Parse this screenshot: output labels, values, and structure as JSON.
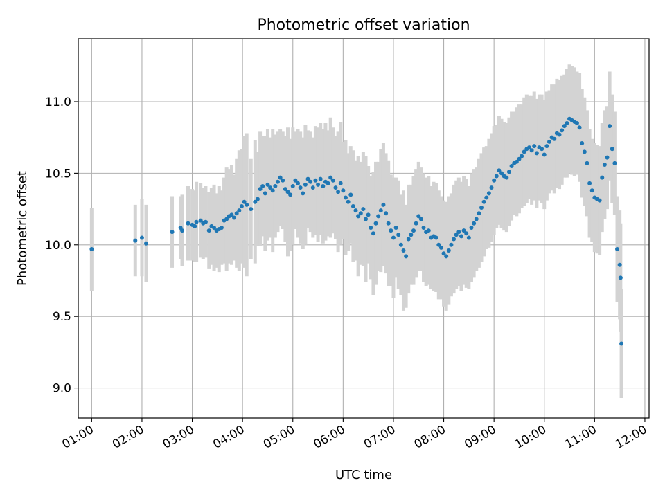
{
  "chart_data": {
    "type": "scatter",
    "title": "Photometric offset variation",
    "xlabel": "UTC time",
    "ylabel": "Photometric offset",
    "xlim": [
      "00:44",
      "12:05"
    ],
    "ylim": [
      8.79,
      11.44
    ],
    "x_ticks": [
      "01:00",
      "02:00",
      "03:00",
      "04:00",
      "05:00",
      "06:00",
      "07:00",
      "08:00",
      "09:00",
      "10:00",
      "11:00",
      "12:00"
    ],
    "y_ticks": [
      "9.0",
      "9.5",
      "10.0",
      "10.5",
      "11.0"
    ],
    "grid": true,
    "colors": {
      "points": "#1f77b4",
      "errorbars": "#d3d3d3",
      "grid": "#b0b0b0"
    },
    "series": [
      {
        "x": [
          "01:00",
          "01:52",
          "02:00",
          "02:05",
          "02:36",
          "02:46",
          "02:48",
          "02:55",
          "03:00",
          "03:03",
          "03:05",
          "03:10",
          "03:13",
          "03:16",
          "03:20",
          "03:23",
          "03:26",
          "03:29",
          "03:32",
          "03:35",
          "03:38",
          "03:41",
          "03:44",
          "03:47",
          "03:50",
          "03:53",
          "03:56",
          "03:59",
          "04:02",
          "04:05",
          "04:10",
          "04:15",
          "04:18",
          "04:21",
          "04:24",
          "04:27",
          "04:30",
          "04:33",
          "04:36",
          "04:39",
          "04:42",
          "04:45",
          "04:48",
          "04:51",
          "04:54",
          "04:57",
          "05:00",
          "05:03",
          "05:06",
          "05:09",
          "05:12",
          "05:15",
          "05:18",
          "05:21",
          "05:24",
          "05:27",
          "05:30",
          "05:33",
          "05:36",
          "05:39",
          "05:42",
          "05:45",
          "05:48",
          "05:51",
          "05:54",
          "05:57",
          "06:00",
          "06:03",
          "06:06",
          "06:09",
          "06:12",
          "06:15",
          "06:18",
          "06:21",
          "06:24",
          "06:27",
          "06:30",
          "06:33",
          "06:36",
          "06:39",
          "06:42",
          "06:45",
          "06:48",
          "06:51",
          "06:54",
          "06:57",
          "07:00",
          "07:03",
          "07:06",
          "07:09",
          "07:12",
          "07:15",
          "07:18",
          "07:21",
          "07:24",
          "07:27",
          "07:30",
          "07:33",
          "07:36",
          "07:39",
          "07:42",
          "07:45",
          "07:48",
          "07:51",
          "07:54",
          "07:57",
          "08:00",
          "08:03",
          "08:06",
          "08:09",
          "08:12",
          "08:15",
          "08:18",
          "08:21",
          "08:24",
          "08:27",
          "08:30",
          "08:33",
          "08:36",
          "08:39",
          "08:42",
          "08:45",
          "08:48",
          "08:51",
          "08:54",
          "08:57",
          "09:00",
          "09:03",
          "09:06",
          "09:09",
          "09:12",
          "09:15",
          "09:18",
          "09:21",
          "09:24",
          "09:27",
          "09:30",
          "09:33",
          "09:36",
          "09:39",
          "09:42",
          "09:45",
          "09:48",
          "09:51",
          "09:54",
          "09:57",
          "10:00",
          "10:03",
          "10:06",
          "10:09",
          "10:12",
          "10:15",
          "10:18",
          "10:21",
          "10:24",
          "10:27",
          "10:30",
          "10:33",
          "10:36",
          "10:39",
          "10:42",
          "10:45",
          "10:48",
          "10:51",
          "10:54",
          "10:57",
          "11:00",
          "11:03",
          "11:06",
          "11:09",
          "11:12",
          "11:15",
          "11:18",
          "11:21",
          "11:24",
          "11:27",
          "11:30",
          "11:31",
          "11:32"
        ],
        "y": [
          9.97,
          10.03,
          10.05,
          10.01,
          10.09,
          10.12,
          10.1,
          10.15,
          10.14,
          10.13,
          10.16,
          10.17,
          10.15,
          10.16,
          10.1,
          10.13,
          10.12,
          10.1,
          10.11,
          10.12,
          10.17,
          10.18,
          10.2,
          10.21,
          10.19,
          10.22,
          10.24,
          10.27,
          10.3,
          10.28,
          10.25,
          10.3,
          10.32,
          10.39,
          10.41,
          10.36,
          10.42,
          10.4,
          10.38,
          10.41,
          10.44,
          10.47,
          10.45,
          10.39,
          10.37,
          10.35,
          10.41,
          10.45,
          10.43,
          10.4,
          10.36,
          10.42,
          10.46,
          10.44,
          10.4,
          10.45,
          10.42,
          10.46,
          10.41,
          10.44,
          10.43,
          10.47,
          10.45,
          10.4,
          10.37,
          10.43,
          10.38,
          10.33,
          10.3,
          10.35,
          10.27,
          10.24,
          10.2,
          10.22,
          10.25,
          10.18,
          10.21,
          10.12,
          10.08,
          10.15,
          10.2,
          10.24,
          10.28,
          10.22,
          10.15,
          10.1,
          10.05,
          10.12,
          10.07,
          10.0,
          9.96,
          9.92,
          10.04,
          10.07,
          10.1,
          10.15,
          10.2,
          10.18,
          10.12,
          10.09,
          10.1,
          10.05,
          10.06,
          10.05,
          10.0,
          9.98,
          9.94,
          9.92,
          9.96,
          10.0,
          10.04,
          10.07,
          10.09,
          10.06,
          10.1,
          10.08,
          10.05,
          10.12,
          10.15,
          10.18,
          10.22,
          10.26,
          10.3,
          10.33,
          10.36,
          10.4,
          10.45,
          10.48,
          10.52,
          10.5,
          10.48,
          10.47,
          10.51,
          10.55,
          10.57,
          10.58,
          10.6,
          10.62,
          10.65,
          10.67,
          10.68,
          10.66,
          10.69,
          10.64,
          10.68,
          10.67,
          10.63,
          10.69,
          10.72,
          10.75,
          10.74,
          10.78,
          10.77,
          10.8,
          10.83,
          10.85,
          10.88,
          10.87,
          10.86,
          10.85,
          10.82,
          10.71,
          10.65,
          10.57,
          10.43,
          10.38,
          10.33,
          10.32,
          10.31,
          10.47,
          10.56,
          10.61,
          10.83,
          10.67,
          10.57,
          9.97,
          9.86,
          9.77,
          9.31
        ],
        "yerr": [
          0.29,
          0.25,
          0.27,
          0.27,
          0.25,
          0.22,
          0.25,
          0.26,
          0.25,
          0.25,
          0.28,
          0.26,
          0.25,
          0.25,
          0.27,
          0.27,
          0.3,
          0.26,
          0.3,
          0.26,
          0.3,
          0.36,
          0.33,
          0.35,
          0.3,
          0.38,
          0.42,
          0.4,
          0.46,
          0.5,
          0.35,
          0.43,
          0.33,
          0.4,
          0.35,
          0.4,
          0.39,
          0.35,
          0.43,
          0.36,
          0.35,
          0.34,
          0.34,
          0.37,
          0.45,
          0.39,
          0.41,
          0.34,
          0.38,
          0.39,
          0.39,
          0.42,
          0.34,
          0.35,
          0.35,
          0.38,
          0.4,
          0.39,
          0.4,
          0.41,
          0.37,
          0.42,
          0.37,
          0.36,
          0.42,
          0.43,
          0.34,
          0.4,
          0.34,
          0.34,
          0.39,
          0.35,
          0.42,
          0.36,
          0.4,
          0.44,
          0.34,
          0.36,
          0.43,
          0.43,
          0.38,
          0.43,
          0.43,
          0.42,
          0.44,
          0.39,
          0.42,
          0.35,
          0.38,
          0.35,
          0.42,
          0.36,
          0.38,
          0.35,
          0.38,
          0.38,
          0.38,
          0.36,
          0.38,
          0.38,
          0.38,
          0.36,
          0.38,
          0.38,
          0.38,
          0.36,
          0.37,
          0.38,
          0.38,
          0.36,
          0.38,
          0.38,
          0.38,
          0.38,
          0.38,
          0.38,
          0.36,
          0.38,
          0.38,
          0.36,
          0.38,
          0.38,
          0.38,
          0.36,
          0.38,
          0.38,
          0.38,
          0.36,
          0.38,
          0.38,
          0.38,
          0.38,
          0.38,
          0.38,
          0.36,
          0.38,
          0.38,
          0.36,
          0.38,
          0.38,
          0.36,
          0.38,
          0.38,
          0.38,
          0.37,
          0.38,
          0.38,
          0.38,
          0.36,
          0.37,
          0.38,
          0.38,
          0.38,
          0.38,
          0.36,
          0.38,
          0.38,
          0.38,
          0.38,
          0.36,
          0.38,
          0.38,
          0.38,
          0.37,
          0.38,
          0.36,
          0.38,
          0.38,
          0.38,
          0.38,
          0.38,
          0.36,
          0.38,
          0.38,
          0.36,
          0.37,
          0.38,
          0.38,
          0.38
        ]
      }
    ]
  }
}
